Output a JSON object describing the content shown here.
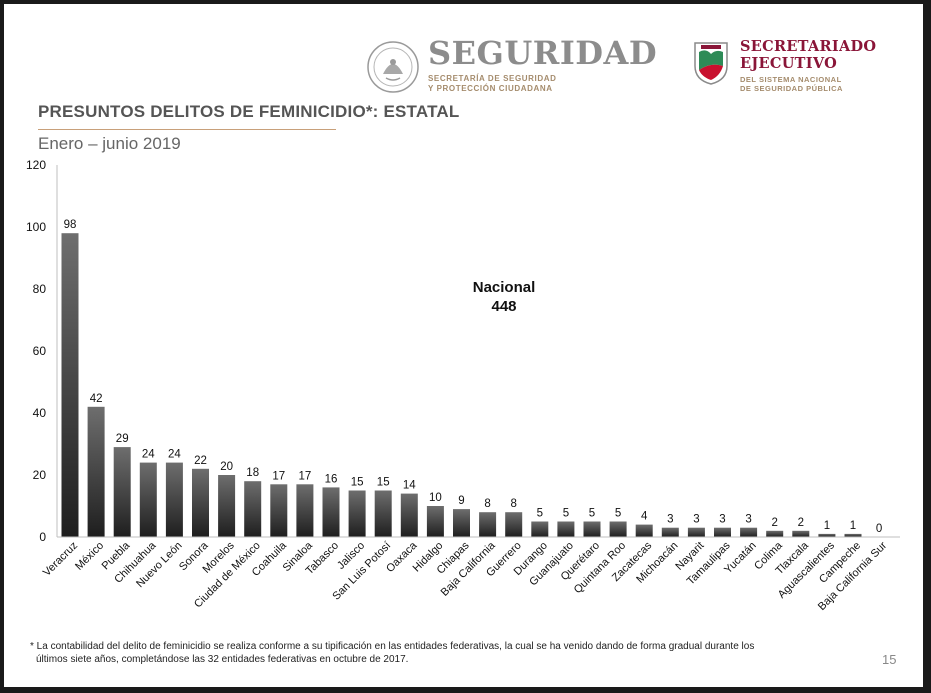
{
  "header": {
    "seguridad_title": "SEGURIDAD",
    "seguridad_subtitle_1": "SECRETARÍA DE SEGURIDAD",
    "seguridad_subtitle_2": "Y PROTECCIÓN CIUDADANA",
    "secretariado_title_1": "SECRETARIADO",
    "secretariado_title_2": "EJECUTIVO",
    "secretariado_subtitle_1": "DEL SISTEMA NACIONAL",
    "secretariado_subtitle_2": "DE SEGURIDAD PÚBLICA",
    "seal_icon": "mexican-coat-of-arms-icon",
    "emblem_icon": "sesnsp-shield-icon"
  },
  "slide": {
    "title": "PRESUNTOS DELITOS DE FEMINICIDIO*: ESTATAL",
    "subtitle": "Enero – junio 2019",
    "footnote_1": "* La contabilidad del delito de feminicidio se realiza conforme a su tipificación en las entidades federativas, la cual se ha venido dando de forma gradual durante los",
    "footnote_2": "últimos siete años, completándose las 32 entidades federativas en octubre de 2017.",
    "page_number": "15"
  },
  "colors": {
    "bar_top": "#6e6e6e",
    "bar_bottom": "#1e1e1e",
    "accent_rule": "#c8a07a",
    "seguridad_gray": "#8c8c8c",
    "secretariado_red": "#8a1538",
    "subtitle_gold": "#a58c6d"
  },
  "chart_data": {
    "type": "bar",
    "categories": [
      "Veracruz",
      "México",
      "Puebla",
      "Chihuahua",
      "Nuevo León",
      "Sonora",
      "Morelos",
      "Ciudad de México",
      "Coahuila",
      "Sinaloa",
      "Tabasco",
      "Jalisco",
      "San Luis Potosí",
      "Oaxaca",
      "Hidalgo",
      "Chiapas",
      "Baja California",
      "Guerrero",
      "Durango",
      "Guanajuato",
      "Querétaro",
      "Quintana Roo",
      "Zacatecas",
      "Michoacán",
      "Nayarit",
      "Tamaulipas",
      "Yucatán",
      "Colima",
      "Tlaxcala",
      "Aguascalientes",
      "Campeche",
      "Baja California Sur"
    ],
    "values": [
      98,
      42,
      29,
      24,
      24,
      22,
      20,
      18,
      17,
      17,
      16,
      15,
      15,
      14,
      10,
      9,
      8,
      8,
      5,
      5,
      5,
      5,
      4,
      3,
      3,
      3,
      3,
      2,
      2,
      1,
      1,
      0
    ],
    "value_labels": [
      "98",
      "42",
      "29",
      "24",
      "24",
      "22",
      "20",
      "18",
      "17",
      "17",
      "16",
      "15",
      "15",
      "14",
      "10",
      "9",
      "8",
      "8",
      "5",
      "5",
      "5",
      "5",
      "4",
      "3",
      "3",
      "3",
      "3",
      "2",
      "2",
      "1",
      "1",
      "0"
    ],
    "y_ticks": [
      0,
      20,
      40,
      60,
      80,
      100,
      120
    ],
    "y_tick_labels": [
      "0",
      "20",
      "40",
      "60",
      "80",
      "100",
      "120"
    ],
    "ylim": [
      0,
      120
    ],
    "grid": false,
    "annotation_label": "Nacional",
    "annotation_value": "448"
  }
}
